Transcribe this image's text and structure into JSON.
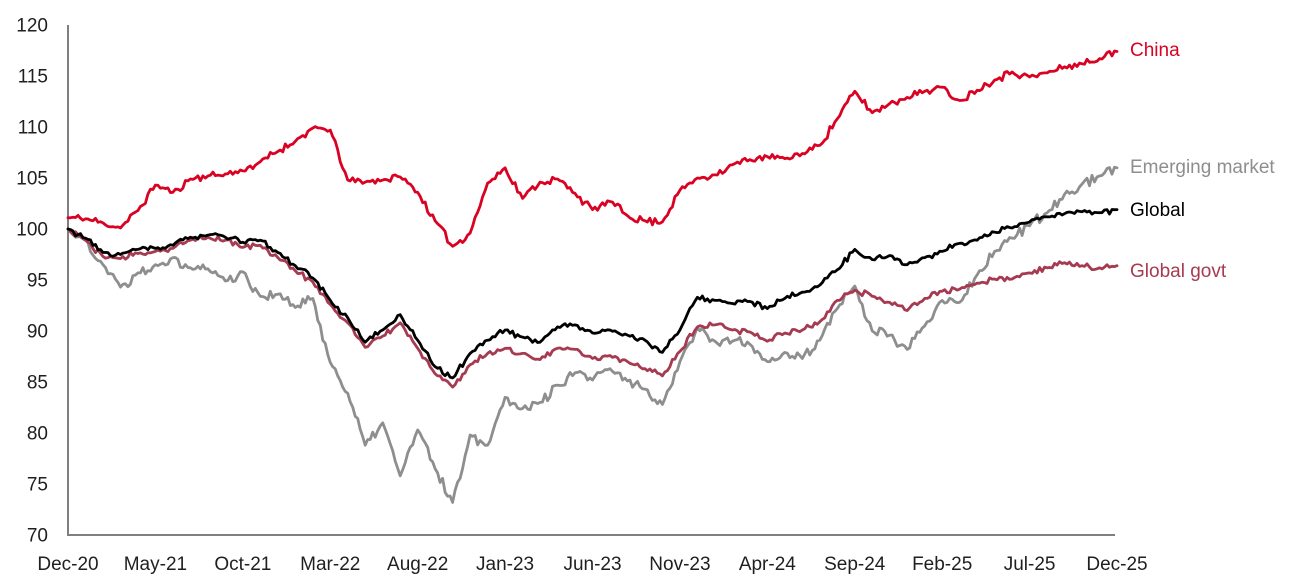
{
  "chart_data": {
    "type": "line",
    "title": "",
    "xlabel": "",
    "ylabel": "",
    "ylim": [
      70,
      120
    ],
    "y_ticks": [
      70,
      75,
      80,
      85,
      90,
      95,
      100,
      105,
      110,
      115,
      120
    ],
    "grid": false,
    "legend_position": "right-end-labels",
    "x": [
      "Dec-20",
      "Jan-21",
      "Feb-21",
      "Mar-21",
      "Apr-21",
      "May-21",
      "Jun-21",
      "Jul-21",
      "Aug-21",
      "Sep-21",
      "Oct-21",
      "Nov-21",
      "Dec-21",
      "Jan-22",
      "Feb-22",
      "Mar-22",
      "Apr-22",
      "May-22",
      "Jun-22",
      "Jul-22",
      "Aug-22",
      "Sep-22",
      "Oct-22",
      "Nov-22",
      "Dec-22",
      "Jan-23",
      "Feb-23",
      "Mar-23",
      "Apr-23",
      "May-23",
      "Jun-23",
      "Jul-23",
      "Aug-23",
      "Sep-23",
      "Oct-23",
      "Nov-23",
      "Dec-23",
      "Jan-24",
      "Feb-24",
      "Mar-24",
      "Apr-24",
      "May-24",
      "Jun-24",
      "Jul-24",
      "Aug-24",
      "Sep-24",
      "Oct-24",
      "Nov-24",
      "Dec-24",
      "Jan-25",
      "Feb-25",
      "Mar-25",
      "Apr-25",
      "May-25",
      "Jun-25",
      "Jul-25",
      "Aug-25",
      "Sep-25",
      "Oct-25",
      "Nov-25",
      "Dec-25"
    ],
    "x_tick_every": 5,
    "x_tick_labels": [
      "Dec-20",
      "May-21",
      "Oct-21",
      "Mar-22",
      "Aug-22",
      "Jan-23",
      "Jun-23",
      "Nov-23",
      "Apr-24",
      "Sep-24",
      "Feb-25",
      "Jul-25",
      "Dec-25"
    ],
    "series": [
      {
        "name": "China",
        "color": "#d90222",
        "values": [
          101.1,
          101.0,
          100.6,
          100.1,
          101.8,
          104.3,
          103.6,
          104.9,
          105.2,
          105.4,
          105.7,
          106.6,
          107.6,
          108.6,
          109.9,
          109.7,
          104.8,
          104.6,
          104.8,
          105.1,
          103.6,
          100.8,
          98.3,
          99.6,
          104.5,
          106.0,
          103.0,
          104.6,
          104.9,
          103.5,
          101.9,
          102.7,
          101.3,
          100.8,
          100.7,
          103.8,
          105.0,
          105.3,
          106.3,
          106.8,
          107.1,
          106.9,
          107.4,
          108.2,
          110.8,
          113.5,
          111.4,
          112.3,
          112.9,
          113.5,
          113.9,
          112.6,
          113.6,
          114.6,
          115.4,
          114.9,
          115.3,
          115.9,
          116.2,
          116.7,
          117.4
        ]
      },
      {
        "name": "Emerging market",
        "color": "#8e8e8e",
        "values": [
          100.0,
          98.9,
          96.5,
          94.3,
          95.7,
          96.5,
          97.2,
          96.2,
          96.1,
          94.9,
          95.8,
          93.4,
          93.6,
          92.3,
          93.2,
          86.9,
          83.9,
          78.8,
          81.0,
          75.8,
          80.3,
          76.5,
          73.2,
          79.8,
          78.8,
          83.5,
          82.4,
          83.0,
          84.7,
          85.9,
          85.2,
          86.3,
          85.1,
          84.3,
          82.8,
          87.0,
          90.3,
          89.0,
          89.0,
          88.7,
          87.0,
          87.9,
          87.3,
          89.1,
          92.2,
          94.4,
          90.0,
          89.6,
          88.2,
          90.5,
          93.0,
          92.8,
          95.5,
          97.8,
          99.1,
          100.3,
          101.6,
          103.4,
          104.4,
          105.2,
          106.0
        ]
      },
      {
        "name": "Global",
        "color": "#000000",
        "values": [
          100.0,
          99.1,
          97.7,
          97.5,
          98.0,
          98.1,
          98.4,
          99.2,
          99.4,
          99.2,
          98.7,
          98.9,
          97.7,
          96.4,
          95.2,
          93.0,
          91.3,
          88.9,
          90.1,
          91.6,
          89.1,
          86.5,
          85.4,
          87.8,
          89.1,
          90.1,
          89.4,
          88.9,
          90.4,
          90.6,
          89.8,
          90.1,
          89.6,
          89.1,
          87.9,
          90.1,
          93.3,
          93.0,
          92.7,
          92.9,
          92.2,
          93.2,
          93.8,
          94.5,
          96.0,
          98.0,
          97.0,
          97.4,
          96.5,
          97.2,
          97.8,
          98.6,
          98.9,
          99.7,
          100.1,
          100.7,
          101.2,
          101.5,
          101.7,
          101.6,
          101.9
        ]
      },
      {
        "name": "Global govt",
        "color": "#a63a50",
        "values": [
          100.0,
          98.9,
          97.3,
          97.1,
          97.6,
          97.8,
          98.1,
          98.9,
          99.2,
          98.9,
          98.2,
          98.4,
          97.2,
          95.9,
          94.8,
          92.6,
          90.8,
          88.4,
          89.5,
          90.8,
          88.3,
          85.8,
          84.5,
          86.7,
          87.8,
          88.3,
          87.8,
          87.2,
          88.3,
          88.2,
          87.3,
          87.6,
          87.0,
          86.3,
          85.6,
          88.0,
          90.4,
          90.6,
          90.1,
          89.9,
          89.0,
          89.8,
          90.1,
          90.9,
          93.0,
          94.0,
          93.4,
          92.8,
          92.0,
          93.2,
          93.9,
          94.1,
          94.7,
          95.1,
          95.1,
          95.7,
          96.2,
          96.7,
          96.4,
          96.2,
          96.4
        ]
      }
    ],
    "axis_color": "#7f7f7f",
    "tick_label_color": "#1f1f1f"
  }
}
